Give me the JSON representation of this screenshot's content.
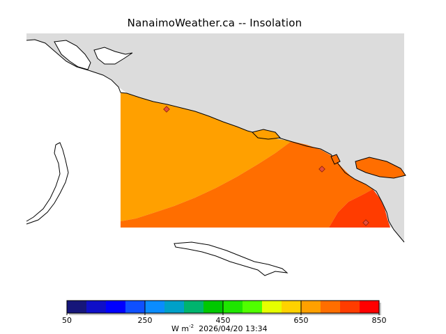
{
  "title": "NanaimoWeather.ca  --  Insolation",
  "colorbar": {
    "colors": [
      "#16167a",
      "#0f0fc8",
      "#0000ff",
      "#0f50ff",
      "#0a8cff",
      "#00a0c8",
      "#00b46e",
      "#00c800",
      "#1ee600",
      "#50ff00",
      "#e6ff00",
      "#ffd200",
      "#ffa000",
      "#ff6e00",
      "#ff3c00",
      "#ff0000"
    ],
    "tick_labels": [
      "50",
      "250",
      "450",
      "650",
      "850"
    ],
    "unit_prefix": "W m",
    "unit_exponent": "-2",
    "timestamp": "2026/04/20 13:34"
  },
  "map_colors": {
    "land": "#dcdcdc",
    "zone_low": "#ffa000",
    "zone_mid": "#ff6e00",
    "zone_high": "#ff3c00",
    "station_marker": "#e6503c"
  }
}
